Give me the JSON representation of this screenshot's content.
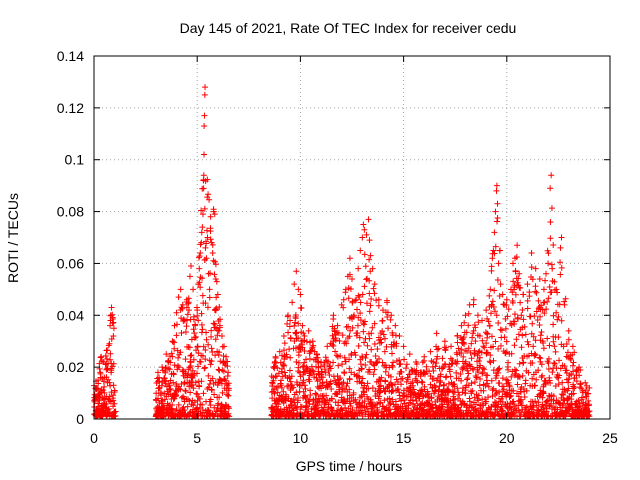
{
  "chart_data": {
    "type": "scatter",
    "title": "Day 145 of 2021, Rate Of TEC Index for receiver cedu",
    "xlabel": "GPS time / hours",
    "ylabel": "ROTI / TECUs",
    "xlim": [
      0,
      25
    ],
    "ylim": [
      0,
      0.14
    ],
    "x_ticks": [
      0,
      5,
      10,
      15,
      20,
      25
    ],
    "y_ticks": [
      0,
      0.02,
      0.04,
      0.06,
      0.08,
      0.1,
      0.12,
      0.14
    ],
    "x_tick_labels": [
      "0",
      "5",
      "10",
      "15",
      "20",
      "25"
    ],
    "y_tick_labels": [
      "0",
      "0.02",
      "0.04",
      "0.06",
      "0.08",
      "0.1",
      "0.12",
      "0.14"
    ],
    "grid": true,
    "marker": "+",
    "color": "#ff0000",
    "series": [
      {
        "name": "ROTI",
        "segments": [
          {
            "x_start": 0.0,
            "x_end": 1.05
          },
          {
            "x_start": 3.0,
            "x_end": 6.55
          },
          {
            "x_start": 8.6,
            "x_end": 24.0
          }
        ],
        "points": [
          [
            0.1,
            0.012
          ],
          [
            0.2,
            0.015
          ],
          [
            0.3,
            0.018
          ],
          [
            0.35,
            0.024
          ],
          [
            0.45,
            0.022
          ],
          [
            0.5,
            0.016
          ],
          [
            0.6,
            0.019
          ],
          [
            0.65,
            0.014
          ],
          [
            0.75,
            0.029
          ],
          [
            0.78,
            0.036
          ],
          [
            0.8,
            0.038
          ],
          [
            0.82,
            0.04
          ],
          [
            0.85,
            0.043
          ],
          [
            0.9,
            0.037
          ],
          [
            0.95,
            0.013
          ],
          [
            1.0,
            0.011
          ],
          [
            3.1,
            0.018
          ],
          [
            3.3,
            0.02
          ],
          [
            3.5,
            0.025
          ],
          [
            3.6,
            0.022
          ],
          [
            3.8,
            0.03
          ],
          [
            3.9,
            0.036
          ],
          [
            4.0,
            0.041
          ],
          [
            4.1,
            0.047
          ],
          [
            4.2,
            0.05
          ],
          [
            4.3,
            0.044
          ],
          [
            4.4,
            0.038
          ],
          [
            4.5,
            0.046
          ],
          [
            4.6,
            0.042
          ],
          [
            4.65,
            0.055
          ],
          [
            4.7,
            0.059
          ],
          [
            4.8,
            0.05
          ],
          [
            4.9,
            0.036
          ],
          [
            5.0,
            0.042
          ],
          [
            5.05,
            0.052
          ],
          [
            5.1,
            0.058
          ],
          [
            5.15,
            0.064
          ],
          [
            5.2,
            0.068
          ],
          [
            5.22,
            0.072
          ],
          [
            5.25,
            0.074
          ],
          [
            5.28,
            0.079
          ],
          [
            5.3,
            0.092
          ],
          [
            5.32,
            0.094
          ],
          [
            5.33,
            0.102
          ],
          [
            5.35,
            0.117
          ],
          [
            5.37,
            0.125
          ],
          [
            5.38,
            0.128
          ],
          [
            5.4,
            0.066
          ],
          [
            5.45,
            0.062
          ],
          [
            5.5,
            0.07
          ],
          [
            5.55,
            0.056
          ],
          [
            5.6,
            0.05
          ],
          [
            5.65,
            0.078
          ],
          [
            5.7,
            0.068
          ],
          [
            5.75,
            0.064
          ],
          [
            5.8,
            0.08
          ],
          [
            5.85,
            0.079
          ],
          [
            5.9,
            0.054
          ],
          [
            5.95,
            0.053
          ],
          [
            6.0,
            0.048
          ],
          [
            6.1,
            0.036
          ],
          [
            6.2,
            0.032
          ],
          [
            6.3,
            0.028
          ],
          [
            6.4,
            0.024
          ],
          [
            6.5,
            0.018
          ],
          [
            8.7,
            0.02
          ],
          [
            8.8,
            0.024
          ],
          [
            9.0,
            0.026
          ],
          [
            9.2,
            0.032
          ],
          [
            9.4,
            0.04
          ],
          [
            9.5,
            0.038
          ],
          [
            9.6,
            0.045
          ],
          [
            9.7,
            0.052
          ],
          [
            9.8,
            0.057
          ],
          [
            9.9,
            0.05
          ],
          [
            10.0,
            0.048
          ],
          [
            10.1,
            0.036
          ],
          [
            10.2,
            0.032
          ],
          [
            10.4,
            0.034
          ],
          [
            10.6,
            0.03
          ],
          [
            10.8,
            0.025
          ],
          [
            11.0,
            0.022
          ],
          [
            11.3,
            0.028
          ],
          [
            11.6,
            0.04
          ],
          [
            11.8,
            0.036
          ],
          [
            12.0,
            0.044
          ],
          [
            12.1,
            0.046
          ],
          [
            12.2,
            0.05
          ],
          [
            12.3,
            0.055
          ],
          [
            12.4,
            0.062
          ],
          [
            12.5,
            0.054
          ],
          [
            12.6,
            0.04
          ],
          [
            12.7,
            0.046
          ],
          [
            12.8,
            0.058
          ],
          [
            12.9,
            0.065
          ],
          [
            13.0,
            0.07
          ],
          [
            13.05,
            0.075
          ],
          [
            13.1,
            0.073
          ],
          [
            13.2,
            0.071
          ],
          [
            13.3,
            0.077
          ],
          [
            13.35,
            0.069
          ],
          [
            13.4,
            0.063
          ],
          [
            13.5,
            0.058
          ],
          [
            13.6,
            0.052
          ],
          [
            13.8,
            0.046
          ],
          [
            14.0,
            0.042
          ],
          [
            14.2,
            0.045
          ],
          [
            14.4,
            0.04
          ],
          [
            14.6,
            0.036
          ],
          [
            14.8,
            0.032
          ],
          [
            15.0,
            0.028
          ],
          [
            15.3,
            0.025
          ],
          [
            15.6,
            0.022
          ],
          [
            16.0,
            0.024
          ],
          [
            16.3,
            0.026
          ],
          [
            16.6,
            0.033
          ],
          [
            17.0,
            0.03
          ],
          [
            17.3,
            0.028
          ],
          [
            17.6,
            0.032
          ],
          [
            17.8,
            0.036
          ],
          [
            18.0,
            0.04
          ],
          [
            18.2,
            0.044
          ],
          [
            18.4,
            0.046
          ],
          [
            18.6,
            0.04
          ],
          [
            18.8,
            0.038
          ],
          [
            19.0,
            0.042
          ],
          [
            19.2,
            0.05
          ],
          [
            19.3,
            0.062
          ],
          [
            19.35,
            0.065
          ],
          [
            19.4,
            0.072
          ],
          [
            19.45,
            0.08
          ],
          [
            19.5,
            0.088
          ],
          [
            19.52,
            0.09
          ],
          [
            19.55,
            0.083
          ],
          [
            19.6,
            0.06
          ],
          [
            19.7,
            0.052
          ],
          [
            19.8,
            0.048
          ],
          [
            19.9,
            0.044
          ],
          [
            20.0,
            0.046
          ],
          [
            20.2,
            0.05
          ],
          [
            20.3,
            0.06
          ],
          [
            20.4,
            0.062
          ],
          [
            20.5,
            0.067
          ],
          [
            20.6,
            0.056
          ],
          [
            20.8,
            0.048
          ],
          [
            21.0,
            0.052
          ],
          [
            21.2,
            0.064
          ],
          [
            21.4,
            0.058
          ],
          [
            21.6,
            0.054
          ],
          [
            21.8,
            0.05
          ],
          [
            21.9,
            0.056
          ],
          [
            22.0,
            0.06
          ],
          [
            22.1,
            0.089
          ],
          [
            22.15,
            0.094
          ],
          [
            22.2,
            0.058
          ],
          [
            22.4,
            0.05
          ],
          [
            22.6,
            0.066
          ],
          [
            22.65,
            0.07
          ],
          [
            22.8,
            0.044
          ],
          [
            23.0,
            0.034
          ],
          [
            23.2,
            0.028
          ],
          [
            23.5,
            0.02
          ],
          [
            23.8,
            0.014
          ],
          [
            24.0,
            0.012
          ]
        ]
      }
    ]
  }
}
